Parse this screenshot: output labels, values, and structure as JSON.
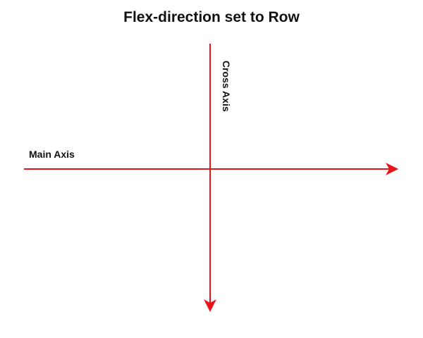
{
  "title": "Flex-direction set to Row",
  "axes": {
    "main": {
      "label": "Main Axis",
      "direction": "left-to-right"
    },
    "cross": {
      "label": "Cross Axis",
      "direction": "top-to-bottom"
    }
  },
  "colors": {
    "axis": "#e8141a",
    "text": "#111111",
    "background": "#ffffff"
  }
}
